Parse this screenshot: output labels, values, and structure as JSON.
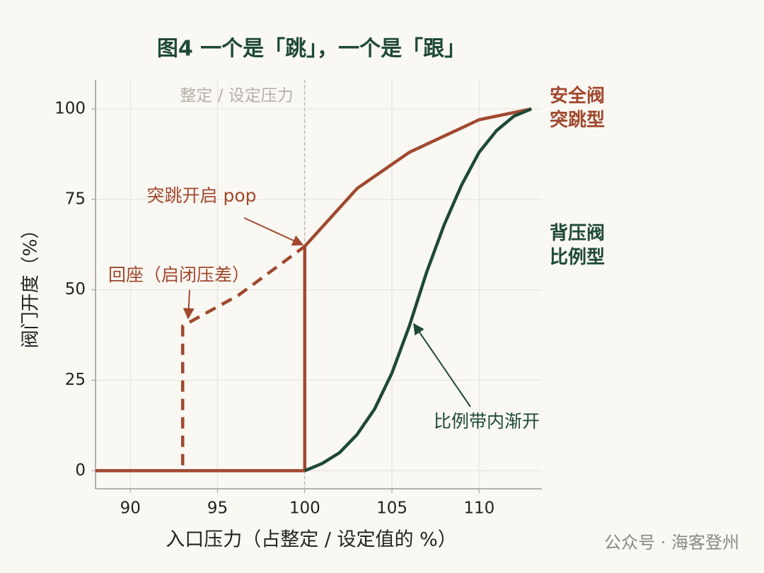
{
  "chart_data": {
    "type": "line",
    "title": "图4  一个是「跳」，一个是「跟」",
    "xlabel": "入口压力（占整定 / 设定值的 %）",
    "ylabel": "阀门开度（%）",
    "xlim": [
      88,
      113.6
    ],
    "ylim": [
      -5,
      108
    ],
    "xticks": [
      90,
      95,
      100,
      105,
      110
    ],
    "yticks": [
      0,
      25,
      50,
      75,
      100
    ],
    "grid": true,
    "series": [
      {
        "name": "安全阀\n突跳型",
        "color": "#a0492f",
        "x": [
          88,
          100,
          100,
          103,
          106,
          110,
          113
        ],
        "values": [
          0,
          0,
          62,
          78,
          88,
          97,
          100
        ]
      },
      {
        "color": "#a0492f",
        "dash": true,
        "x": [
          93,
          93,
          96.2,
          100
        ],
        "values": [
          1.5,
          40,
          48.5,
          62
        ]
      },
      {
        "name": "背压阀\n比例型",
        "color": "#1e4a35",
        "x": [
          100,
          101,
          102,
          103,
          104,
          105,
          106,
          107,
          108,
          109,
          110,
          111,
          112,
          113
        ],
        "values": [
          0,
          2,
          5,
          10,
          17,
          27,
          40,
          55,
          68,
          79,
          88,
          94,
          98,
          100
        ]
      }
    ],
    "vline": {
      "x": 100,
      "label": "整定 / 设定压力"
    },
    "annotations": [
      {
        "text": "突跳开启 pop",
        "color": "#a0492f"
      },
      {
        "text": "回座（启闭压差）",
        "color": "#a0492f"
      },
      {
        "text": "比例带内渐开",
        "color": "#1e4a35"
      }
    ],
    "watermark": "公众号 · 海客登州"
  }
}
